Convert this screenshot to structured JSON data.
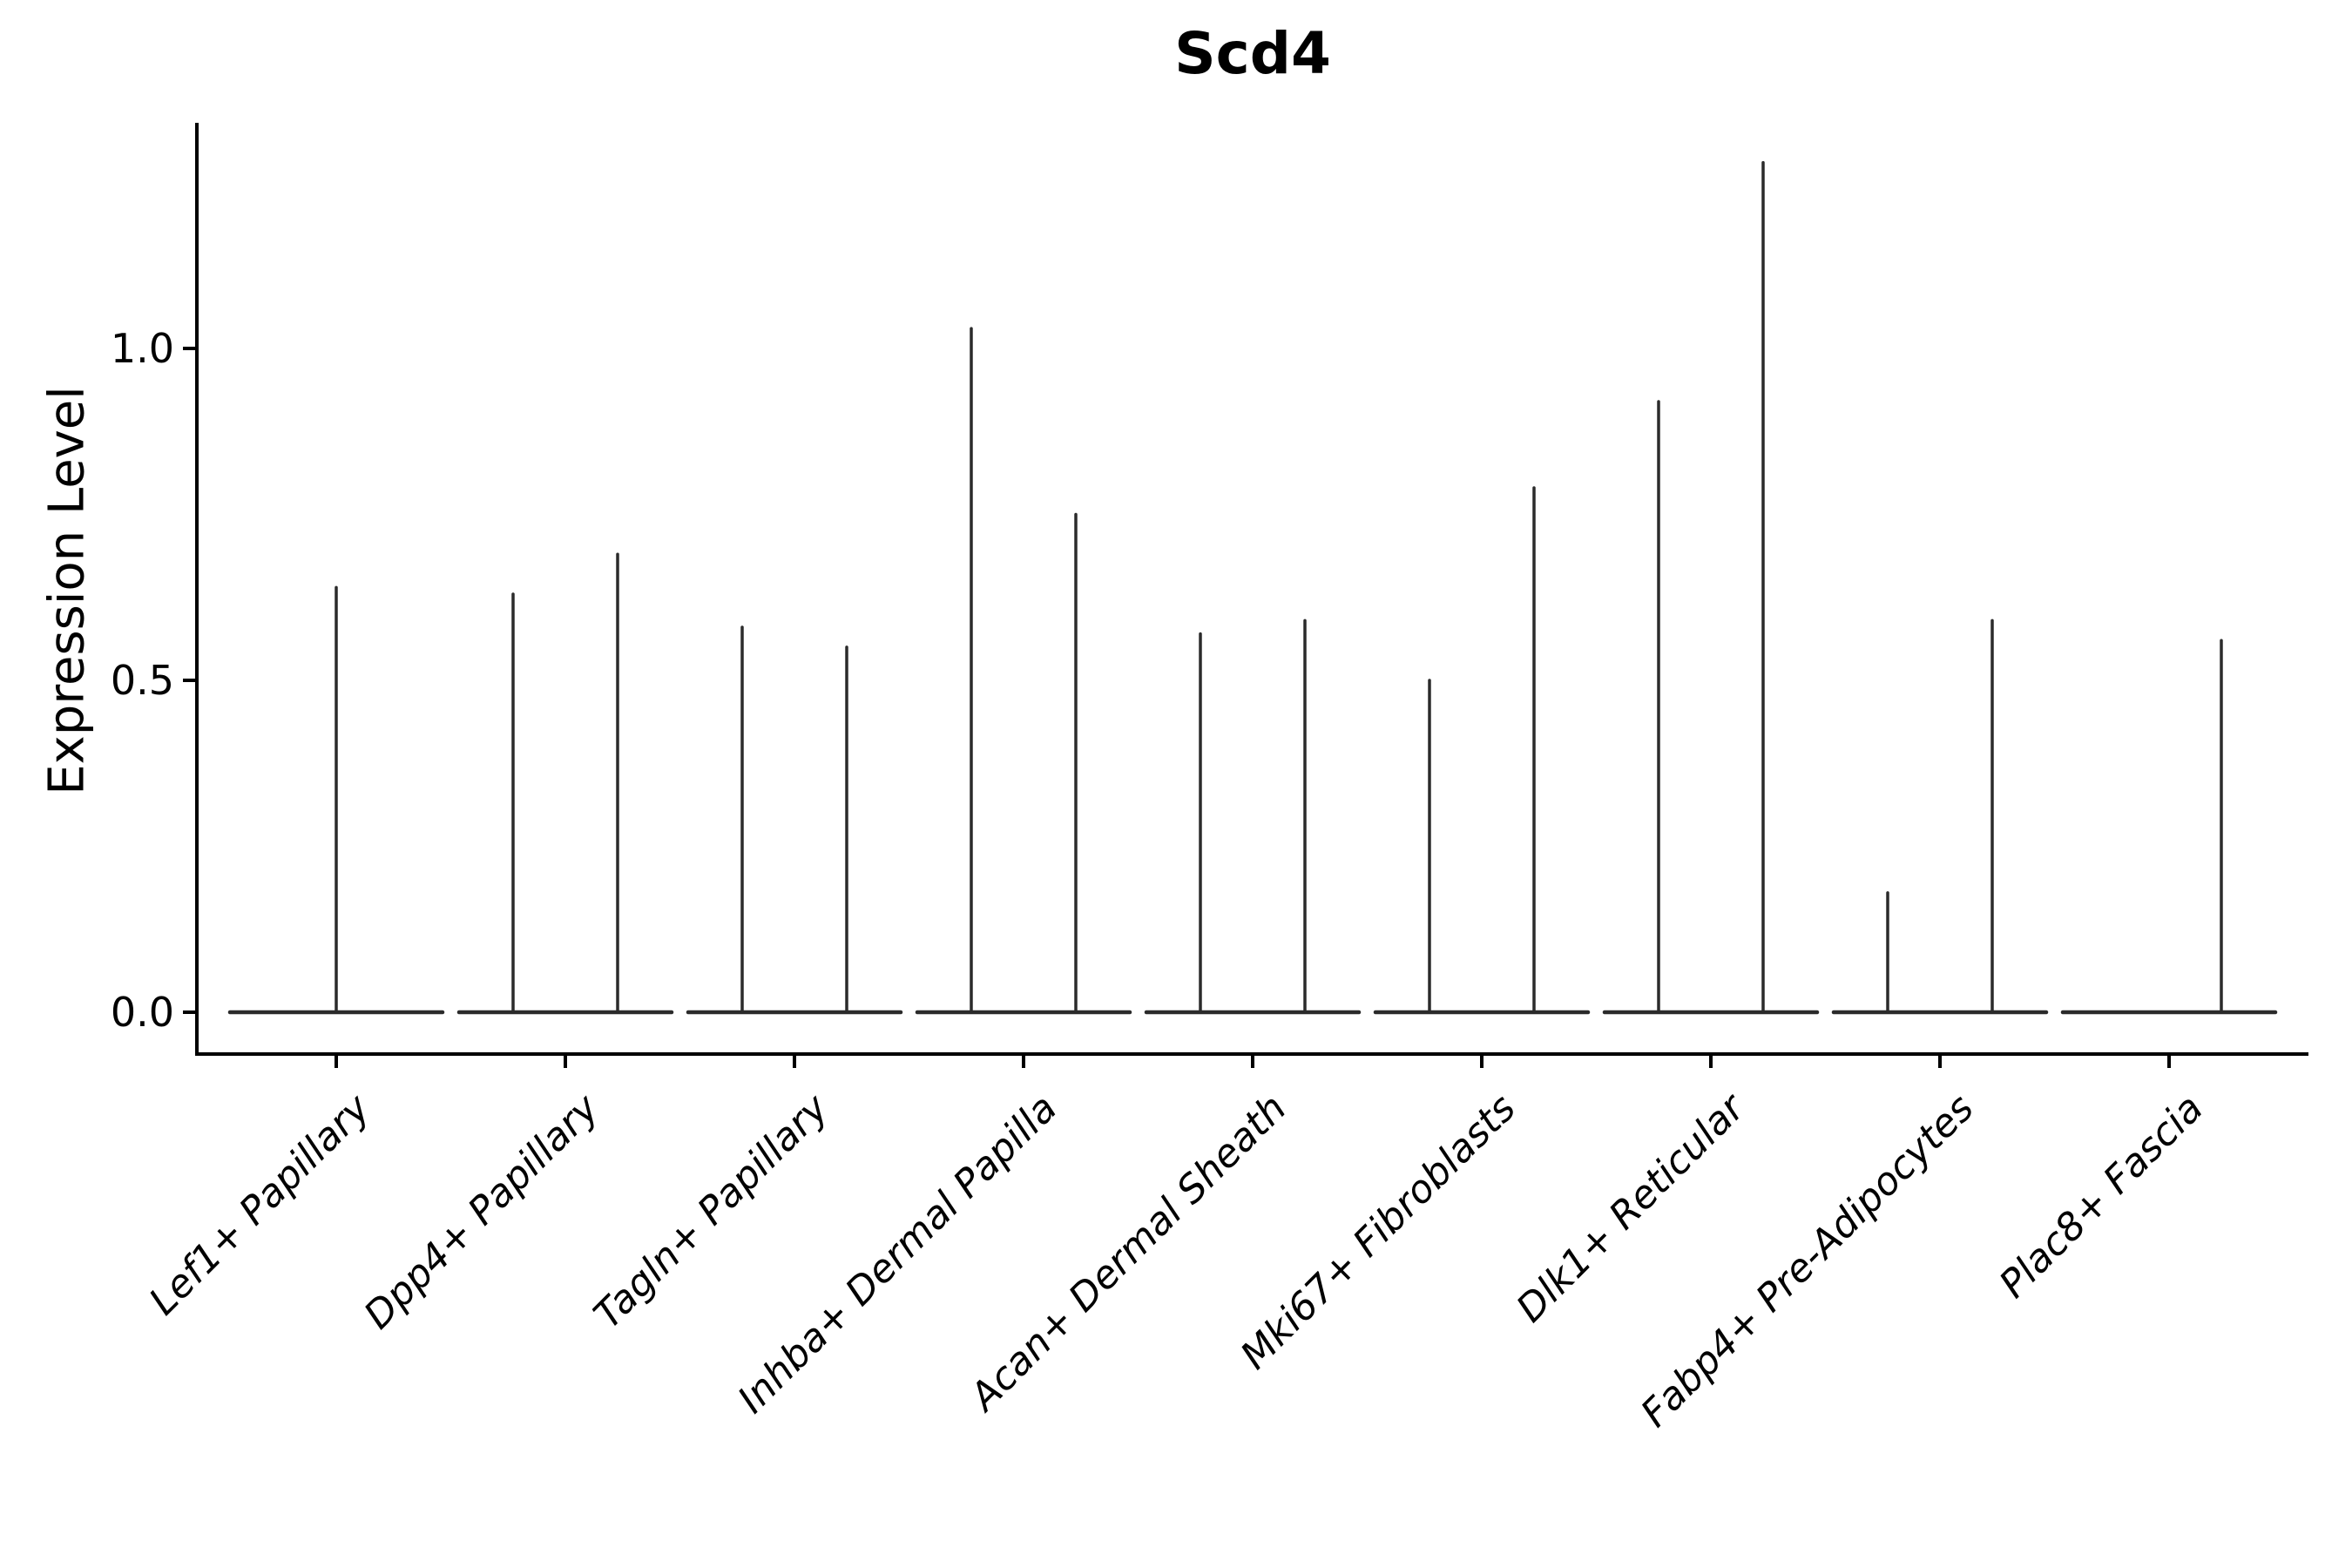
{
  "figure": {
    "background": "#ffffff"
  },
  "chart_data": {
    "type": "violin",
    "title": "Scd4",
    "ylabel": "Expression Level",
    "xlabel": "",
    "grid": false,
    "legend": "none",
    "ylim": [
      -0.06,
      1.34
    ],
    "yticks": [
      {
        "value": 0.0,
        "label": "0.0"
      },
      {
        "value": 0.5,
        "label": "0.5"
      },
      {
        "value": 1.0,
        "label": "1.0"
      }
    ],
    "categories": [
      "Lef1+ Papillary",
      "Dpp4+ Papillary",
      "Tagln+ Papillary",
      "Inhba+ Dermal Papilla",
      "Acan+ Dermal Sheath",
      "Mki67+ Fibroblasts",
      "Dlk1+ Reticular",
      "Fabp4+ Pre-Adipocytes",
      "Plac8+ Fascia"
    ],
    "groups": [
      {
        "category": "Lef1+ Papillary",
        "violins": [
          {
            "position": "center",
            "max": 0.64
          }
        ]
      },
      {
        "category": "Dpp4+ Papillary",
        "violins": [
          {
            "position": "left",
            "max": 0.63
          },
          {
            "position": "right",
            "max": 0.69
          }
        ]
      },
      {
        "category": "Tagln+ Papillary",
        "violins": [
          {
            "position": "left",
            "max": 0.58
          },
          {
            "position": "right",
            "max": 0.55
          }
        ]
      },
      {
        "category": "Inhba+ Dermal Papilla",
        "violins": [
          {
            "position": "left",
            "max": 1.03
          },
          {
            "position": "right",
            "max": 0.75
          }
        ]
      },
      {
        "category": "Acan+ Dermal Sheath",
        "violins": [
          {
            "position": "left",
            "max": 0.57
          },
          {
            "position": "right",
            "max": 0.59
          }
        ]
      },
      {
        "category": "Mki67+ Fibroblasts",
        "violins": [
          {
            "position": "left",
            "max": 0.5
          },
          {
            "position": "right",
            "max": 0.79
          }
        ]
      },
      {
        "category": "Dlk1+ Reticular",
        "violins": [
          {
            "position": "left",
            "max": 0.92
          },
          {
            "position": "right",
            "max": 1.28
          }
        ]
      },
      {
        "category": "Fabp4+ Pre-Adipocytes",
        "violins": [
          {
            "position": "left",
            "max": 0.18
          },
          {
            "position": "right",
            "max": 0.59
          }
        ]
      },
      {
        "category": "Plac8+ Fascia",
        "violins": [
          {
            "position": "left",
            "max": 0.0
          },
          {
            "position": "right",
            "max": 0.56
          }
        ]
      }
    ],
    "colors": {
      "violin_line": "#2b2b2b",
      "axis": "#000000",
      "text": "#000000",
      "background": "#ffffff"
    }
  }
}
